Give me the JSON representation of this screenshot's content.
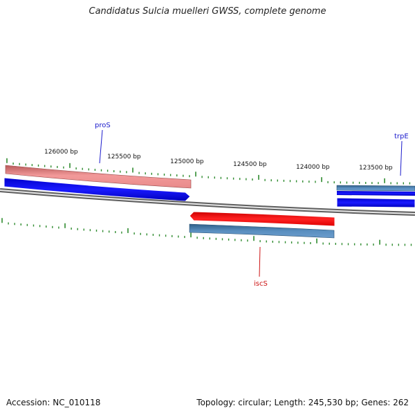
{
  "title": "Candidatus Sulcia muelleri GWSS, complete genome",
  "footer": {
    "accession": "Accession: NC_010118",
    "stats": "Topology: circular; Length: 245,530 bp; Genes: 262"
  },
  "colors": {
    "backbone": "#8a8a8a",
    "tick": "#2e8b2e",
    "blue": "#0000ee",
    "steel": "#4a7fb0",
    "red": "#ee0000",
    "pink": "#e87878",
    "label_blue": "#1a1acc",
    "label_red": "#cc1111"
  },
  "ticks": [
    "126000 bp",
    "125500 bp",
    "125000 bp",
    "124500 bp",
    "124000 bp",
    "123500 bp"
  ],
  "genes": [
    {
      "name": "proS",
      "color": "blue"
    },
    {
      "name": "trpE",
      "color": "blue"
    },
    {
      "name": "iscS",
      "color": "red"
    }
  ]
}
